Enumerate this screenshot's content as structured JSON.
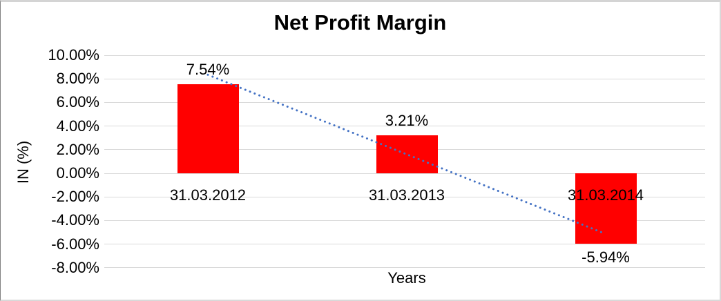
{
  "chart_data": {
    "type": "bar",
    "title": "Net Profit Margin",
    "xlabel": "Years",
    "ylabel": "IN (%)",
    "categories": [
      "31.03.2012",
      "31.03.2013",
      "31.03.2014"
    ],
    "values": [
      7.54,
      3.21,
      -5.94
    ],
    "data_labels": [
      "7.54%",
      "3.21%",
      "-5.94%"
    ],
    "y_ticks": [
      "10.00%",
      "8.00%",
      "6.00%",
      "4.00%",
      "2.00%",
      "0.00%",
      "-2.00%",
      "-4.00%",
      "-6.00%",
      "-8.00%"
    ],
    "y_tick_values": [
      10,
      8,
      6,
      4,
      2,
      0,
      -2,
      -4,
      -6,
      -8
    ],
    "ylim": [
      -8,
      10
    ],
    "grid": true,
    "legend": "none",
    "colors": {
      "bar": "#ff0000",
      "gridline": "#d9d9d9",
      "trendline": "#4472c4",
      "text": "#000000"
    },
    "trendline": {
      "type": "linear",
      "style": "dotted"
    }
  }
}
